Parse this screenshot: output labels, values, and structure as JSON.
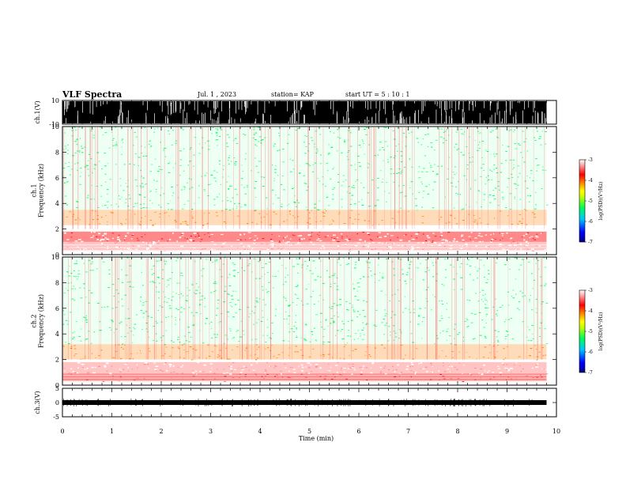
{
  "header": {
    "title": "VLF Spectra",
    "date": "Jul. 1 , 2023",
    "station": "station= KAP",
    "start": "start UT = 5 : 10 : 1"
  },
  "chart_data": [
    {
      "type": "line",
      "name": "ch1-waveform",
      "ylabel": "ch.1(V)",
      "ylim": [
        -10,
        10
      ],
      "yticks": [
        "10",
        "-10"
      ],
      "x_range_min": [
        0,
        9.8
      ],
      "description_values": {
        "typical_envelope_V": [
          -10,
          10
        ]
      }
    },
    {
      "type": "heatmap",
      "name": "ch1-spectrogram",
      "ylabel": "ch.1 Frequency (kHz)",
      "ylim": [
        0,
        10
      ],
      "yticks": [
        "0",
        "2",
        "4",
        "6",
        "8",
        "10"
      ],
      "bands_kHz": [
        {
          "from": 0.3,
          "to": 1.0,
          "level": -3.6
        },
        {
          "from": 1.0,
          "to": 1.8,
          "level": -3.9
        },
        {
          "from": 2.3,
          "to": 3.5,
          "level": -4.3
        },
        {
          "from": 3.5,
          "to": 10,
          "level": -5.5
        }
      ],
      "colorbar": {
        "min": -7,
        "max": -3,
        "ticks": [
          "-3",
          "-4",
          "-5",
          "-6",
          "-7"
        ],
        "label": "log(PSD)(V²/Hz)"
      }
    },
    {
      "type": "heatmap",
      "name": "ch2-spectrogram",
      "ylabel": "ch.2 Frequency (kHz)",
      "ylim": [
        0,
        10
      ],
      "yticks": [
        "0",
        "2",
        "4",
        "6",
        "8",
        "10"
      ],
      "bands_kHz": [
        {
          "from": 0.3,
          "to": 0.9,
          "level": -4.0
        },
        {
          "from": 0.9,
          "to": 1.8,
          "level": -3.3
        },
        {
          "from": 2.0,
          "to": 3.2,
          "level": -4.3
        },
        {
          "from": 3.2,
          "to": 10,
          "level": -5.5
        }
      ],
      "colorbar": {
        "min": -7,
        "max": -3,
        "ticks": [
          "-3",
          "-4",
          "-5",
          "-6",
          "-7"
        ],
        "label": "log(PSD)(V²/Hz)"
      }
    },
    {
      "type": "line",
      "name": "ch3-waveform",
      "ylabel": "ch.3(V)",
      "ylim": [
        -5,
        5
      ],
      "yticks": [
        "5",
        "0",
        "-5"
      ],
      "x_range_min": [
        0,
        9.8
      ]
    }
  ],
  "xaxis": {
    "label": "Time (min)",
    "range": [
      0,
      10
    ],
    "ticks": [
      "0",
      "1",
      "2",
      "3",
      "4",
      "5",
      "6",
      "7",
      "8",
      "9",
      "10"
    ]
  },
  "colors": {
    "colormap": [
      "#000080",
      "#0000ff",
      "#00c8ff",
      "#00ff60",
      "#c8ff00",
      "#ffff00",
      "#ff8000",
      "#ff0000",
      "#ff8080",
      "#ffffff"
    ]
  }
}
